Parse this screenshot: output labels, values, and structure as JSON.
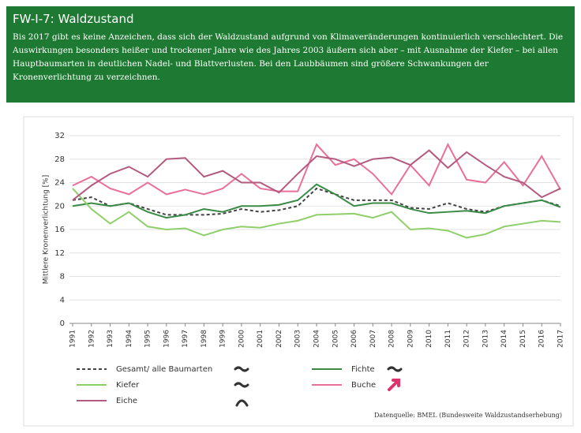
{
  "chart_data": {
    "type": "line",
    "title": "FW-I-7: Waldzustand",
    "subtitle": "Bis 2017 gibt es keine Anzeichen, dass sich der Waldzustand aufgrund von Klimaveränderungen kontinuierlich verschlechtert. Die Auswirkungen besonders heißer und trockener Jahre wie des Jahres 2003 äußern sich aber – mit Ausnahme der Kiefer – bei allen Hauptbaumarten in deutlichen Nadel- und Blattverlusten. Bei den Laubbäumen sind größere Schwankungen der Kronenverlichtung zu verzeichnen.",
    "y_label": "Mittlere Kronenverlichtung [%]",
    "source": "Datenquelle: BMEL (Bundesweite Waldzustandserhebung)",
    "categories": [
      "1991",
      "1992",
      "1993",
      "1994",
      "1995",
      "1996",
      "1997",
      "1998",
      "1999",
      "2000",
      "2001",
      "2002",
      "2003",
      "2004",
      "2005",
      "2006",
      "2007",
      "2008",
      "2009",
      "2010",
      "2011",
      "2012",
      "2013",
      "2014",
      "2015",
      "2016",
      "2017"
    ],
    "series": [
      {
        "name": "Gesamt/ alle Baumarten",
        "color": "#444444",
        "dashed": true,
        "values": [
          21,
          21.5,
          20,
          20.5,
          19.5,
          18.5,
          18.5,
          18.5,
          18.7,
          19.5,
          19,
          19.3,
          20,
          23,
          22,
          21,
          21,
          21,
          19.7,
          19.5,
          20.5,
          19.5,
          19,
          20,
          20.5,
          21,
          20
        ]
      },
      {
        "name": "Fichte",
        "color": "#3a8a46",
        "dashed": false,
        "values": [
          20,
          20.5,
          20,
          20.5,
          19,
          18,
          18.5,
          19.5,
          19,
          20,
          20,
          20.2,
          21,
          23.7,
          22,
          20,
          20.5,
          20.5,
          19.5,
          18.8,
          19,
          19.2,
          18.8,
          20,
          20.5,
          21,
          19.8
        ]
      },
      {
        "name": "Kiefer",
        "color": "#8fcf6a",
        "dashed": false,
        "values": [
          23,
          19.5,
          17,
          19,
          16.5,
          16,
          16.2,
          15,
          16,
          16.5,
          16.3,
          17,
          17.5,
          18.5,
          18.6,
          18.7,
          18,
          19,
          16,
          16.2,
          15.8,
          14.6,
          15.2,
          16.5,
          17,
          17.5,
          17.3
        ]
      },
      {
        "name": "Buche",
        "color": "#e8709a",
        "dashed": false,
        "values": [
          23.5,
          25,
          23,
          22,
          24,
          22,
          22.8,
          22,
          23,
          25.5,
          23,
          22.5,
          22.5,
          30.5,
          27,
          28,
          25.5,
          22,
          27,
          23.5,
          30.5,
          24.5,
          24,
          27.5,
          23.5,
          28.5,
          22.8
        ]
      },
      {
        "name": "Eiche",
        "color": "#b35a80",
        "dashed": false,
        "values": [
          21,
          23.5,
          25.5,
          26.7,
          25,
          28,
          28.2,
          25,
          26,
          24,
          24,
          22.3,
          25.5,
          28.5,
          28,
          26.8,
          28,
          28.3,
          27,
          29.5,
          26.5,
          29.2,
          27,
          25,
          24,
          21.5,
          23
        ]
      }
    ],
    "ylim": [
      0,
      32
    ],
    "yticks": [
      0,
      4,
      8,
      12,
      16,
      20,
      24,
      28,
      32
    ],
    "grid": true
  }
}
